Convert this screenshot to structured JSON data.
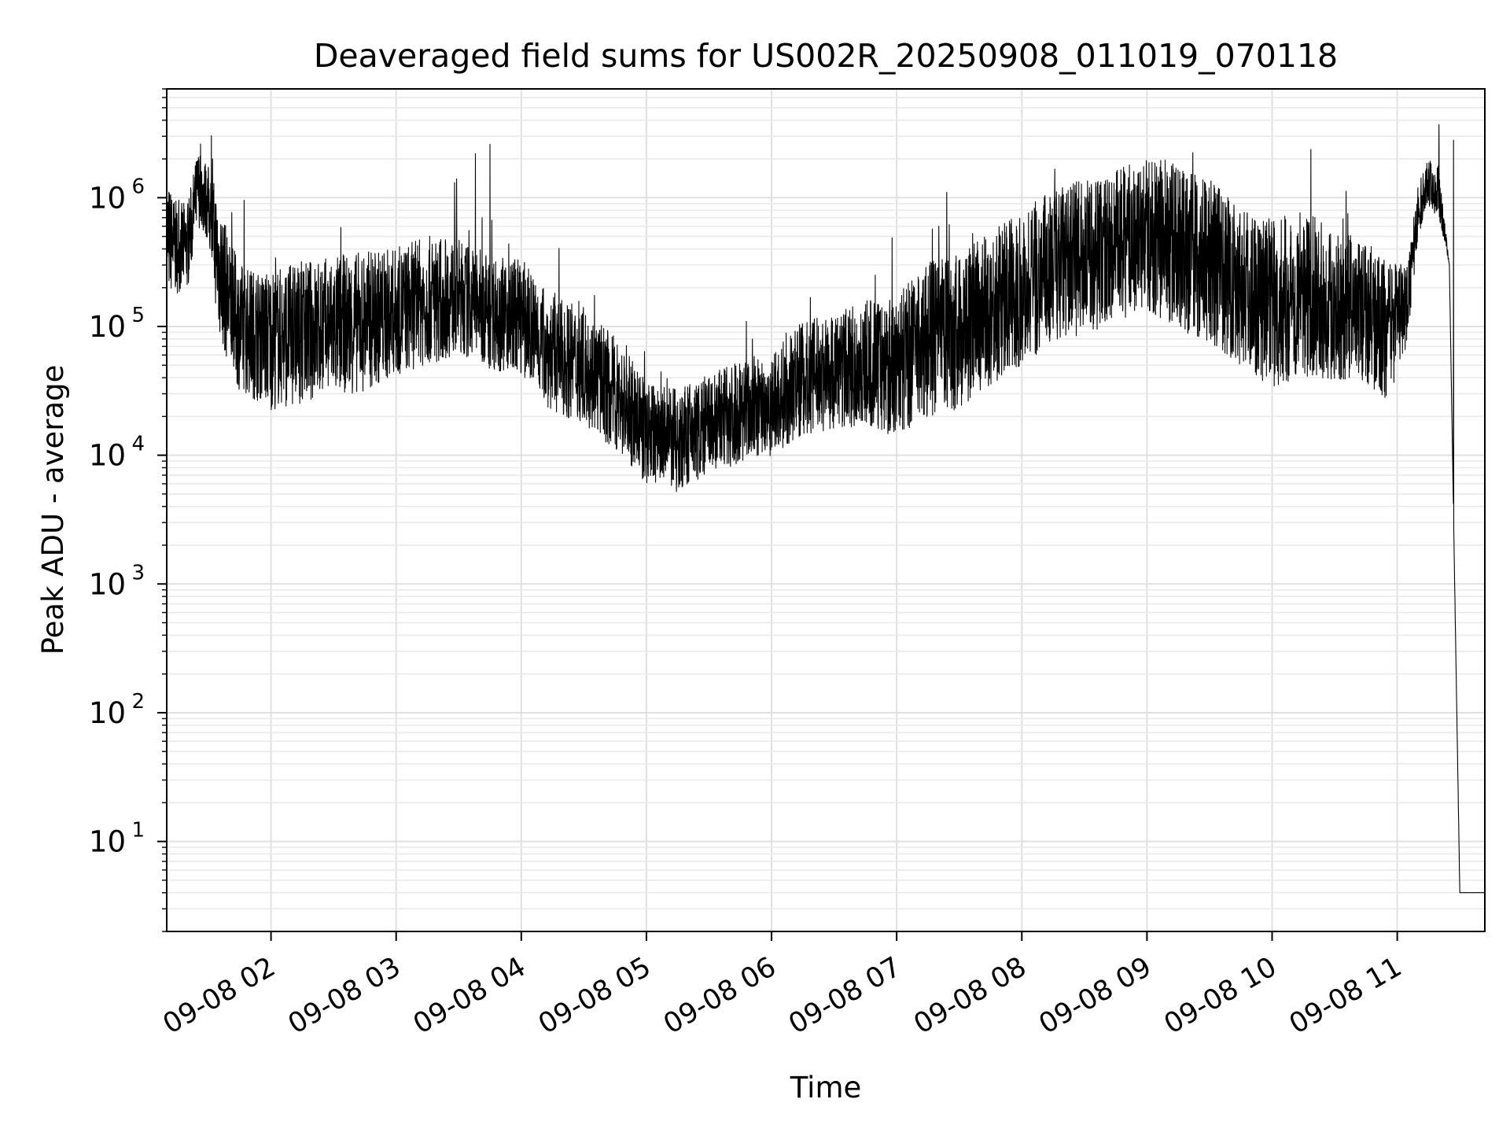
{
  "chart_data": {
    "type": "line",
    "title": "Deaveraged field sums for US002R_20250908_011019_070118",
    "xlabel": "Time",
    "ylabel": "Peak ADU - average",
    "yscale": "log",
    "xlim": [
      "2025-09-08 01:10",
      "2025-09-08 11:42"
    ],
    "ylim": [
      2,
      7000000
    ],
    "grid": "major and minor, light gray",
    "x_ticks": [
      "09-08 02",
      "09-08 03",
      "09-08 04",
      "09-08 05",
      "09-08 06",
      "09-08 07",
      "09-08 08",
      "09-08 09",
      "09-08 10",
      "09-08 11"
    ],
    "x_tick_times": [
      "2025-09-08 02:00",
      "2025-09-08 03:00",
      "2025-09-08 04:00",
      "2025-09-08 05:00",
      "2025-09-08 06:00",
      "2025-09-08 07:00",
      "2025-09-08 08:00",
      "2025-09-08 09:00",
      "2025-09-08 10:00",
      "2025-09-08 11:00"
    ],
    "y_ticks": [
      {
        "value": 10,
        "base": "10",
        "exp": "1"
      },
      {
        "value": 100,
        "base": "10",
        "exp": "2"
      },
      {
        "value": 1000,
        "base": "10",
        "exp": "3"
      },
      {
        "value": 10000,
        "base": "10",
        "exp": "4"
      },
      {
        "value": 100000,
        "base": "10",
        "exp": "5"
      },
      {
        "value": 1000000,
        "base": "10",
        "exp": "6"
      }
    ],
    "line_color": "#000000",
    "series": [
      {
        "x": [
          "2025-09-08 01:10",
          "2025-09-08 01:15",
          "2025-09-08 01:20",
          "2025-09-08 01:25",
          "2025-09-08 01:30",
          "2025-09-08 01:35",
          "2025-09-08 01:40",
          "2025-09-08 01:45",
          "2025-09-08 01:50",
          "2025-09-08 02:00",
          "2025-09-08 02:15",
          "2025-09-08 02:30",
          "2025-09-08 02:45",
          "2025-09-08 03:00",
          "2025-09-08 03:15",
          "2025-09-08 03:30",
          "2025-09-08 03:45",
          "2025-09-08 04:00",
          "2025-09-08 04:15",
          "2025-09-08 04:30",
          "2025-09-08 04:45",
          "2025-09-08 05:00",
          "2025-09-08 05:15",
          "2025-09-08 05:30",
          "2025-09-08 05:45",
          "2025-09-08 06:00",
          "2025-09-08 06:15",
          "2025-09-08 06:30",
          "2025-09-08 06:45",
          "2025-09-08 07:00",
          "2025-09-08 07:15",
          "2025-09-08 07:30",
          "2025-09-08 07:45",
          "2025-09-08 08:00",
          "2025-09-08 08:15",
          "2025-09-08 08:30",
          "2025-09-08 08:45",
          "2025-09-08 09:00",
          "2025-09-08 09:15",
          "2025-09-08 09:30",
          "2025-09-08 09:45",
          "2025-09-08 10:00",
          "2025-09-08 10:15",
          "2025-09-08 10:30",
          "2025-09-08 10:45",
          "2025-09-08 10:55",
          "2025-09-08 11:05",
          "2025-09-08 11:10",
          "2025-09-08 11:15",
          "2025-09-08 11:20",
          "2025-09-08 11:25",
          "2025-09-08 11:30",
          "2025-09-08 11:34",
          "2025-09-08 11:35",
          "2025-09-08 11:42"
        ],
        "y": [
          500000,
          400000,
          420000,
          1200000,
          900000,
          300000,
          150000,
          100000,
          90000,
          80000,
          90000,
          100000,
          110000,
          130000,
          160000,
          170000,
          130000,
          120000,
          60000,
          50000,
          30000,
          15000,
          13000,
          17000,
          22000,
          25000,
          40000,
          45000,
          50000,
          50000,
          80000,
          90000,
          140000,
          200000,
          300000,
          350000,
          420000,
          520000,
          430000,
          320000,
          220000,
          150000,
          180000,
          150000,
          130000,
          90000,
          150000,
          800000,
          1300000,
          1100000,
          300000,
          4,
          4,
          4,
          4
        ],
        "band": [
          0.45,
          0.35,
          0.35,
          0.3,
          0.3,
          0.55,
          0.5,
          0.5,
          0.5,
          0.55,
          0.55,
          0.55,
          0.55,
          0.5,
          0.5,
          0.45,
          0.45,
          0.45,
          0.45,
          0.45,
          0.45,
          0.4,
          0.4,
          0.4,
          0.4,
          0.4,
          0.45,
          0.45,
          0.5,
          0.55,
          0.6,
          0.6,
          0.6,
          0.6,
          0.6,
          0.6,
          0.6,
          0.6,
          0.65,
          0.65,
          0.65,
          0.65,
          0.65,
          0.6,
          0.55,
          0.55,
          0.3,
          0.2,
          0.2,
          0.2,
          0,
          0,
          0,
          0,
          0
        ]
      }
    ],
    "spikes": [
      {
        "x": "2025-09-08 01:32",
        "y": 2000000
      },
      {
        "x": "2025-09-08 03:29",
        "y": 1400000
      },
      {
        "x": "2025-09-08 03:38",
        "y": 2200000
      },
      {
        "x": "2025-09-08 03:45",
        "y": 2600000
      },
      {
        "x": "2025-09-08 07:24",
        "y": 1100000
      },
      {
        "x": "2025-09-08 11:20",
        "y": 3700000
      },
      {
        "x": "2025-09-08 11:27",
        "y": 2800000
      }
    ]
  }
}
